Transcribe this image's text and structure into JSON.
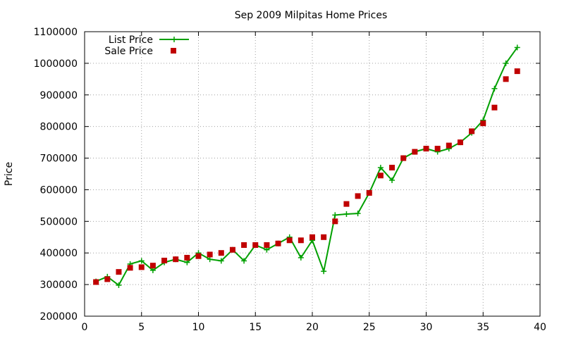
{
  "chart_data": {
    "type": "line",
    "title": "Sep 2009 Milpitas Home Prices",
    "xlabel": "",
    "ylabel": "Price",
    "xlim": [
      0,
      40
    ],
    "ylim": [
      200000,
      1100000
    ],
    "x_ticks": [
      "0",
      "5",
      "10",
      "15",
      "20",
      "25",
      "30",
      "35",
      "40"
    ],
    "y_ticks": [
      "200000",
      "300000",
      "400000",
      "500000",
      "600000",
      "700000",
      "800000",
      "900000",
      "1000000",
      "1100000"
    ],
    "grid": true,
    "legend_position": "top-left",
    "series": [
      {
        "name": "List Price",
        "style": "linespoints",
        "color": "#00a000",
        "marker": "plus",
        "x": [
          1,
          2,
          3,
          4,
          5,
          6,
          7,
          8,
          9,
          10,
          11,
          12,
          13,
          14,
          15,
          16,
          17,
          18,
          19,
          20,
          21,
          22,
          23,
          24,
          25,
          26,
          27,
          28,
          29,
          30,
          31,
          32,
          33,
          34,
          35,
          36,
          37,
          38
        ],
        "y": [
          310000,
          325000,
          298000,
          365000,
          375000,
          345000,
          370000,
          380000,
          370000,
          400000,
          380000,
          375000,
          410000,
          375000,
          425000,
          410000,
          430000,
          450000,
          385000,
          440000,
          342000,
          520000,
          523000,
          525000,
          590000,
          670000,
          630000,
          700000,
          720000,
          730000,
          720000,
          730000,
          750000,
          780000,
          820000,
          920000,
          1000000,
          1050000
        ]
      },
      {
        "name": "Sale Price",
        "style": "points",
        "color": "#c00000",
        "marker": "square",
        "x": [
          1,
          2,
          3,
          4,
          5,
          6,
          7,
          8,
          9,
          10,
          11,
          12,
          13,
          14,
          15,
          16,
          17,
          18,
          19,
          20,
          21,
          22,
          23,
          24,
          25,
          26,
          27,
          28,
          29,
          30,
          31,
          32,
          33,
          34,
          35,
          36,
          37,
          38
        ],
        "y": [
          308000,
          317000,
          340000,
          353000,
          355000,
          360000,
          376000,
          380000,
          385000,
          390000,
          395000,
          400000,
          410000,
          425000,
          425000,
          425000,
          430000,
          440000,
          440000,
          450000,
          450000,
          500000,
          555000,
          580000,
          590000,
          645000,
          670000,
          700000,
          720000,
          730000,
          730000,
          740000,
          750000,
          785000,
          810000,
          860000,
          950000,
          975000
        ]
      }
    ]
  }
}
